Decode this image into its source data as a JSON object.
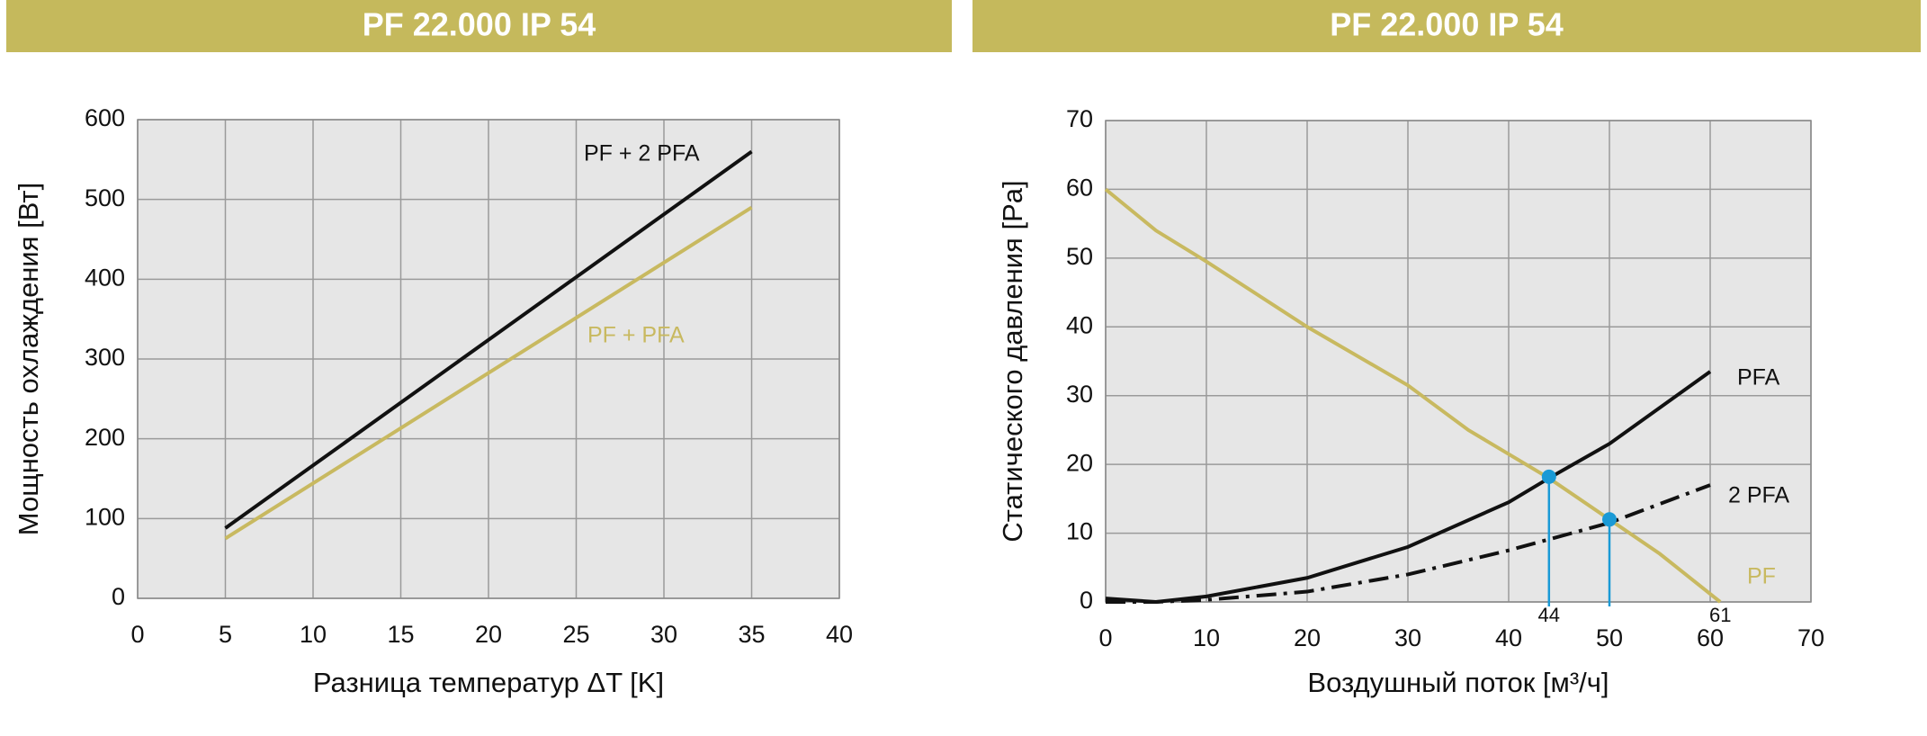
{
  "chart_data": [
    {
      "type": "line",
      "title": "PF 22.000 IP 54",
      "x_label": "Разница температур ΔT [K]",
      "y_label": "Мощность охлаждения [Вт]",
      "xlim": [
        0,
        40
      ],
      "xticks": [
        0,
        5,
        10,
        15,
        20,
        25,
        30,
        35,
        40
      ],
      "ylim": [
        0,
        600
      ],
      "yticks": [
        0,
        100,
        200,
        300,
        400,
        500,
        600
      ],
      "grid": true,
      "series": [
        {
          "name": "PF + 2 PFA",
          "color": "#111111",
          "x": [
            5,
            35
          ],
          "values": [
            88,
            560
          ]
        },
        {
          "name": "PF + PFA",
          "color": "#c8b960",
          "x": [
            5,
            35
          ],
          "values": [
            75,
            490
          ]
        }
      ]
    },
    {
      "type": "line",
      "title": "PF 22.000 IP 54",
      "x_label": "Воздушный поток [м³/ч]",
      "y_label": "Статического давления [Pa]",
      "xlim": [
        0,
        70
      ],
      "xticks": [
        0,
        10,
        20,
        30,
        40,
        50,
        60,
        70
      ],
      "ylim": [
        0,
        70
      ],
      "yticks": [
        0,
        10,
        20,
        30,
        40,
        50,
        60,
        70
      ],
      "grid": true,
      "series": [
        {
          "name": "PFA",
          "color": "#111111",
          "x": [
            0,
            5,
            10,
            20,
            30,
            40,
            44,
            50,
            60
          ],
          "values": [
            0.5,
            0,
            0.8,
            3.5,
            8,
            14.5,
            18,
            23,
            33.5
          ]
        },
        {
          "name": "2 PFA",
          "color": "#111111",
          "dash": "dashdot",
          "x": [
            0,
            5,
            10,
            20,
            30,
            40,
            50,
            60
          ],
          "values": [
            0,
            0,
            0.3,
            1.5,
            4,
            7.5,
            11.5,
            17
          ]
        },
        {
          "name": "PF",
          "color": "#c8b960",
          "x": [
            0,
            5,
            10,
            20,
            30,
            36,
            40,
            44,
            50,
            55,
            61
          ],
          "values": [
            60,
            54,
            49.5,
            40,
            31.5,
            25,
            21.5,
            18,
            12,
            7,
            0
          ]
        }
      ],
      "points": [
        {
          "x": 44,
          "y": 18.2,
          "label": "44",
          "color": "#1a9ad6"
        },
        {
          "x": 50,
          "y": 12,
          "color": "#1a9ad6"
        }
      ],
      "annotations": [
        {
          "x": 61,
          "text": "61"
        }
      ]
    }
  ]
}
